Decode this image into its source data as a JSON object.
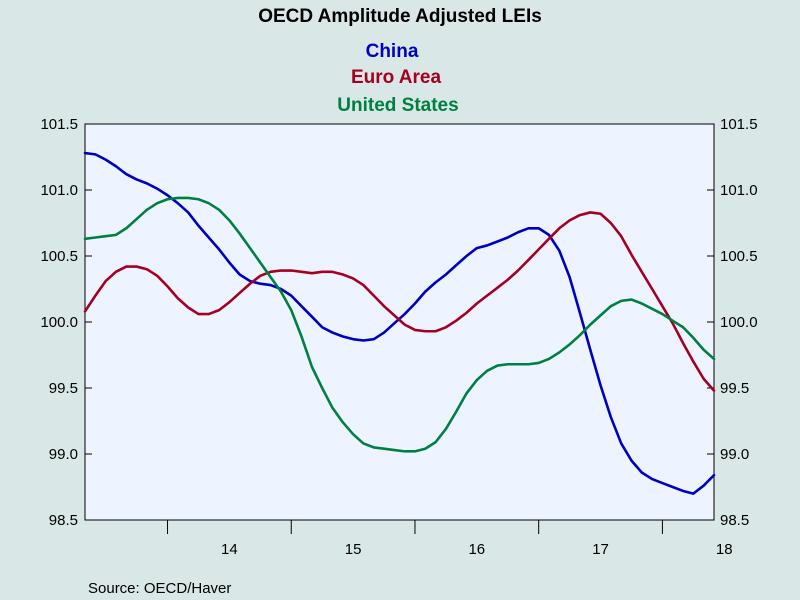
{
  "chart_data": {
    "type": "line",
    "title": "OECD Amplitude Adjusted LEIs",
    "source": "Source:  OECD/Haver",
    "legend_placement": "top-center",
    "plot_background": "#eef4ff",
    "page_background": "#d9e7e6",
    "grid": false,
    "ylim": [
      98.5,
      101.5
    ],
    "yticks": [
      "101.5",
      "101.0",
      "100.5",
      "100.0",
      "99.5",
      "99.0",
      "98.5"
    ],
    "ytick_values": [
      101.5,
      101.0,
      100.5,
      100.0,
      99.5,
      99.0,
      98.5
    ],
    "xlim": [
      2013.333,
      2018.417
    ],
    "xtick_labels": [
      "14",
      "15",
      "16",
      "17",
      "18"
    ],
    "xtick_label_positions": [
      2014.5,
      2015.5,
      2016.5,
      2017.5,
      2018.5
    ],
    "xtick_marks": [
      2014,
      2015,
      2016,
      2017,
      2018
    ],
    "series": [
      {
        "name": "China",
        "color": "#0000c0",
        "points": [
          [
            2013.333,
            101.28
          ],
          [
            2013.417,
            101.27
          ],
          [
            2013.5,
            101.23
          ],
          [
            2013.583,
            101.18
          ],
          [
            2013.667,
            101.12
          ],
          [
            2013.75,
            101.08
          ],
          [
            2013.833,
            101.05
          ],
          [
            2013.917,
            101.01
          ],
          [
            2014.0,
            100.96
          ],
          [
            2014.083,
            100.9
          ],
          [
            2014.167,
            100.83
          ],
          [
            2014.25,
            100.73
          ],
          [
            2014.333,
            100.64
          ],
          [
            2014.417,
            100.55
          ],
          [
            2014.5,
            100.45
          ],
          [
            2014.583,
            100.36
          ],
          [
            2014.667,
            100.31
          ],
          [
            2014.75,
            100.29
          ],
          [
            2014.833,
            100.28
          ],
          [
            2014.917,
            100.25
          ],
          [
            2015.0,
            100.2
          ],
          [
            2015.083,
            100.12
          ],
          [
            2015.167,
            100.04
          ],
          [
            2015.25,
            99.96
          ],
          [
            2015.333,
            99.92
          ],
          [
            2015.417,
            99.89
          ],
          [
            2015.5,
            99.87
          ],
          [
            2015.583,
            99.86
          ],
          [
            2015.667,
            99.87
          ],
          [
            2015.75,
            99.92
          ],
          [
            2015.833,
            99.99
          ],
          [
            2015.917,
            100.06
          ],
          [
            2016.0,
            100.14
          ],
          [
            2016.083,
            100.23
          ],
          [
            2016.167,
            100.3
          ],
          [
            2016.25,
            100.36
          ],
          [
            2016.333,
            100.43
          ],
          [
            2016.417,
            100.5
          ],
          [
            2016.5,
            100.56
          ],
          [
            2016.583,
            100.58
          ],
          [
            2016.667,
            100.61
          ],
          [
            2016.75,
            100.64
          ],
          [
            2016.833,
            100.68
          ],
          [
            2016.917,
            100.71
          ],
          [
            2017.0,
            100.71
          ],
          [
            2017.083,
            100.66
          ],
          [
            2017.167,
            100.54
          ],
          [
            2017.25,
            100.34
          ],
          [
            2017.333,
            100.07
          ],
          [
            2017.417,
            99.79
          ],
          [
            2017.5,
            99.52
          ],
          [
            2017.583,
            99.28
          ],
          [
            2017.667,
            99.08
          ],
          [
            2017.75,
            98.95
          ],
          [
            2017.833,
            98.86
          ],
          [
            2017.917,
            98.81
          ],
          [
            2018.0,
            98.78
          ],
          [
            2018.083,
            98.75
          ],
          [
            2018.167,
            98.72
          ],
          [
            2018.25,
            98.7
          ],
          [
            2018.333,
            98.76
          ],
          [
            2018.417,
            98.84
          ]
        ]
      },
      {
        "name": "Euro Area",
        "color": "#a50021",
        "points": [
          [
            2013.333,
            100.08
          ],
          [
            2013.417,
            100.2
          ],
          [
            2013.5,
            100.31
          ],
          [
            2013.583,
            100.38
          ],
          [
            2013.667,
            100.42
          ],
          [
            2013.75,
            100.42
          ],
          [
            2013.833,
            100.4
          ],
          [
            2013.917,
            100.35
          ],
          [
            2014.0,
            100.27
          ],
          [
            2014.083,
            100.18
          ],
          [
            2014.167,
            100.11
          ],
          [
            2014.25,
            100.06
          ],
          [
            2014.333,
            100.06
          ],
          [
            2014.417,
            100.09
          ],
          [
            2014.5,
            100.15
          ],
          [
            2014.583,
            100.22
          ],
          [
            2014.667,
            100.29
          ],
          [
            2014.75,
            100.35
          ],
          [
            2014.833,
            100.38
          ],
          [
            2014.917,
            100.39
          ],
          [
            2015.0,
            100.39
          ],
          [
            2015.083,
            100.38
          ],
          [
            2015.167,
            100.37
          ],
          [
            2015.25,
            100.38
          ],
          [
            2015.333,
            100.38
          ],
          [
            2015.417,
            100.36
          ],
          [
            2015.5,
            100.33
          ],
          [
            2015.583,
            100.28
          ],
          [
            2015.667,
            100.2
          ],
          [
            2015.75,
            100.12
          ],
          [
            2015.833,
            100.05
          ],
          [
            2015.917,
            99.98
          ],
          [
            2016.0,
            99.94
          ],
          [
            2016.083,
            99.93
          ],
          [
            2016.167,
            99.93
          ],
          [
            2016.25,
            99.96
          ],
          [
            2016.333,
            100.01
          ],
          [
            2016.417,
            100.07
          ],
          [
            2016.5,
            100.14
          ],
          [
            2016.583,
            100.2
          ],
          [
            2016.667,
            100.26
          ],
          [
            2016.75,
            100.32
          ],
          [
            2016.833,
            100.39
          ],
          [
            2016.917,
            100.47
          ],
          [
            2017.0,
            100.55
          ],
          [
            2017.083,
            100.63
          ],
          [
            2017.167,
            100.71
          ],
          [
            2017.25,
            100.77
          ],
          [
            2017.333,
            100.81
          ],
          [
            2017.417,
            100.83
          ],
          [
            2017.5,
            100.82
          ],
          [
            2017.583,
            100.75
          ],
          [
            2017.667,
            100.65
          ],
          [
            2017.75,
            100.51
          ],
          [
            2017.833,
            100.38
          ],
          [
            2017.917,
            100.25
          ],
          [
            2018.0,
            100.12
          ],
          [
            2018.083,
            99.99
          ],
          [
            2018.167,
            99.84
          ],
          [
            2018.25,
            99.7
          ],
          [
            2018.333,
            99.57
          ],
          [
            2018.417,
            99.48
          ]
        ]
      },
      {
        "name": "United States",
        "color": "#008040",
        "points": [
          [
            2013.333,
            100.63
          ],
          [
            2013.417,
            100.64
          ],
          [
            2013.5,
            100.65
          ],
          [
            2013.583,
            100.66
          ],
          [
            2013.667,
            100.71
          ],
          [
            2013.75,
            100.78
          ],
          [
            2013.833,
            100.85
          ],
          [
            2013.917,
            100.9
          ],
          [
            2014.0,
            100.93
          ],
          [
            2014.083,
            100.94
          ],
          [
            2014.167,
            100.94
          ],
          [
            2014.25,
            100.93
          ],
          [
            2014.333,
            100.9
          ],
          [
            2014.417,
            100.85
          ],
          [
            2014.5,
            100.77
          ],
          [
            2014.583,
            100.67
          ],
          [
            2014.667,
            100.56
          ],
          [
            2014.75,
            100.45
          ],
          [
            2014.833,
            100.34
          ],
          [
            2014.917,
            100.23
          ],
          [
            2015.0,
            100.09
          ],
          [
            2015.083,
            99.89
          ],
          [
            2015.167,
            99.66
          ],
          [
            2015.25,
            99.5
          ],
          [
            2015.333,
            99.35
          ],
          [
            2015.417,
            99.24
          ],
          [
            2015.5,
            99.15
          ],
          [
            2015.583,
            99.08
          ],
          [
            2015.667,
            99.05
          ],
          [
            2015.75,
            99.04
          ],
          [
            2015.833,
            99.03
          ],
          [
            2015.917,
            99.02
          ],
          [
            2016.0,
            99.02
          ],
          [
            2016.083,
            99.04
          ],
          [
            2016.167,
            99.09
          ],
          [
            2016.25,
            99.19
          ],
          [
            2016.333,
            99.32
          ],
          [
            2016.417,
            99.46
          ],
          [
            2016.5,
            99.56
          ],
          [
            2016.583,
            99.63
          ],
          [
            2016.667,
            99.67
          ],
          [
            2016.75,
            99.68
          ],
          [
            2016.833,
            99.68
          ],
          [
            2016.917,
            99.68
          ],
          [
            2017.0,
            99.69
          ],
          [
            2017.083,
            99.72
          ],
          [
            2017.167,
            99.77
          ],
          [
            2017.25,
            99.83
          ],
          [
            2017.333,
            99.9
          ],
          [
            2017.417,
            99.98
          ],
          [
            2017.5,
            100.05
          ],
          [
            2017.583,
            100.12
          ],
          [
            2017.667,
            100.16
          ],
          [
            2017.75,
            100.17
          ],
          [
            2017.833,
            100.14
          ],
          [
            2017.917,
            100.1
          ],
          [
            2018.0,
            100.06
          ],
          [
            2018.083,
            100.01
          ],
          [
            2018.167,
            99.96
          ],
          [
            2018.25,
            99.88
          ],
          [
            2018.333,
            99.79
          ],
          [
            2018.417,
            99.72
          ]
        ]
      }
    ]
  }
}
